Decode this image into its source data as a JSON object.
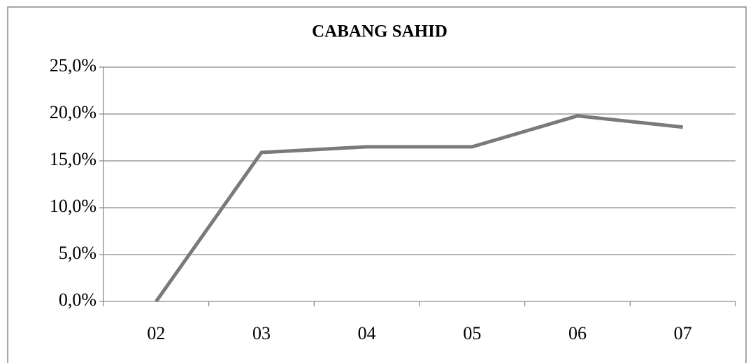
{
  "chart_data": {
    "type": "line",
    "title": "CABANG SAHID",
    "categories": [
      "02",
      "03",
      "04",
      "05",
      "06",
      "07"
    ],
    "series": [
      {
        "color": "#7a7a7a",
        "values": [
          0,
          15.9,
          16.5,
          16.5,
          19.8,
          18.6
        ]
      }
    ],
    "ylim": [
      0,
      25
    ],
    "yticks": [
      {
        "value": 0,
        "label": "0,0%"
      },
      {
        "value": 5,
        "label": "5,0%"
      },
      {
        "value": 10,
        "label": "10,0%"
      },
      {
        "value": 15,
        "label": "15,0%"
      },
      {
        "value": 20,
        "label": "20,0%"
      },
      {
        "value": 25,
        "label": "25,0%"
      }
    ],
    "grid": true
  }
}
